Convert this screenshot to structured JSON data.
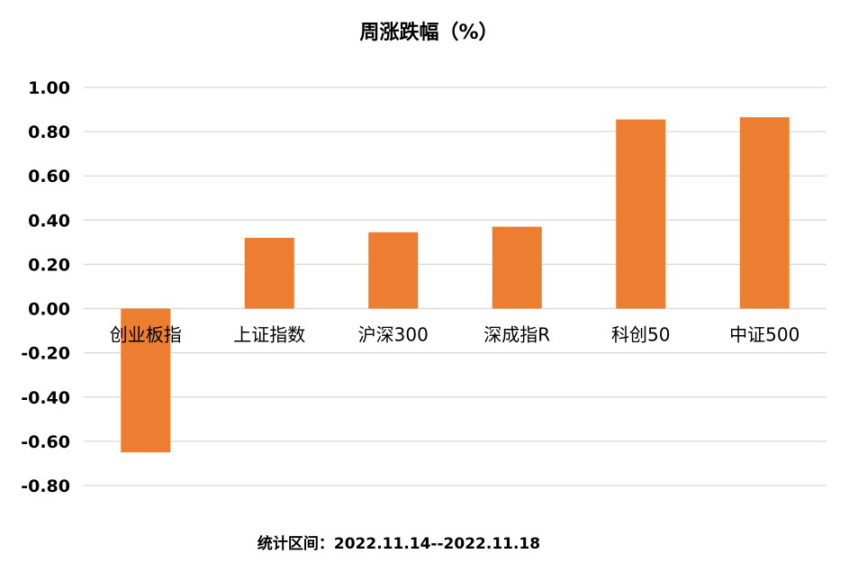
{
  "chart_data": {
    "type": "bar",
    "title": "周涨跌幅（%）",
    "categories": [
      "创业板指",
      "上证指数",
      "沪深300",
      "深成指R",
      "科创50",
      "中证500"
    ],
    "values": [
      -0.65,
      0.32,
      0.345,
      0.37,
      0.855,
      0.865
    ],
    "ylim": [
      -0.8,
      1.0
    ],
    "yticks": [
      "1.00",
      "0.80",
      "0.60",
      "0.40",
      "0.20",
      "0.00",
      "-0.20",
      "-0.40",
      "-0.60",
      "-0.80"
    ],
    "grid": true,
    "bar_color": "#ED7D31",
    "grid_color": "#D9D9D9",
    "footnote": "统计区间：2022.11.14--2022.11.18"
  }
}
